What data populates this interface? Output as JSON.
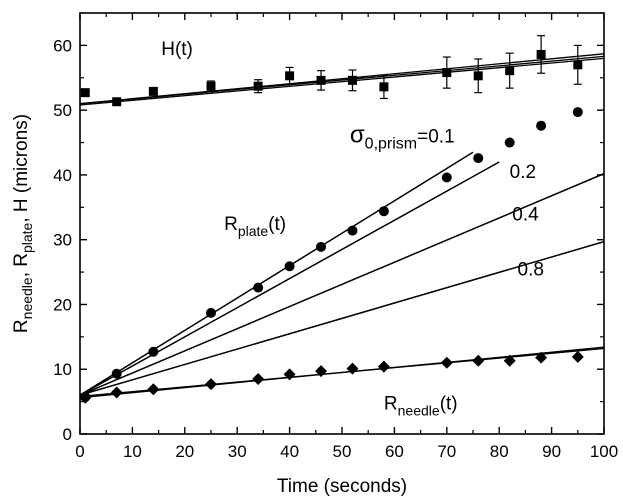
{
  "chart_data": {
    "type": "scatter",
    "xlabel": "Time (seconds)",
    "ylabel": {
      "parts": [
        {
          "text": "R",
          "sub": "needle"
        },
        {
          "text": ", R",
          "sub": "plate"
        },
        {
          "text": ", H  (microns)",
          "sub": ""
        }
      ]
    },
    "xlim": [
      0,
      100
    ],
    "ylim": [
      0,
      65
    ],
    "x_ticks": [
      0,
      10,
      20,
      30,
      40,
      50,
      60,
      70,
      80,
      90,
      100
    ],
    "y_ticks": [
      0,
      10,
      20,
      30,
      40,
      50,
      60
    ],
    "x_tick_labels": [
      "0",
      "10",
      "20",
      "30",
      "40",
      "50",
      "60",
      "70",
      "80",
      "90",
      "100"
    ],
    "y_tick_labels": [
      "0",
      "10",
      "20",
      "30",
      "40",
      "50",
      "60"
    ],
    "grid": false,
    "series": [
      {
        "marker": "square",
        "x": [
          1,
          7,
          14,
          25,
          34,
          40,
          46,
          52,
          58,
          70,
          76,
          82,
          88,
          95
        ],
        "y": [
          52.7,
          51.3,
          52.9,
          53.7,
          53.7,
          55.3,
          54.6,
          54.6,
          53.6,
          55.8,
          55.3,
          56.1,
          58.6,
          57.0
        ],
        "yerr": [
          0,
          0,
          0,
          0.8,
          1.0,
          1.3,
          1.5,
          1.6,
          1.8,
          2.4,
          2.6,
          2.7,
          2.9,
          3.0
        ]
      },
      {
        "marker": "circle",
        "x": [
          1,
          7,
          14,
          25,
          34,
          40,
          46,
          52,
          58,
          70,
          76,
          82,
          88,
          95
        ],
        "y": [
          5.7,
          9.3,
          12.7,
          18.7,
          22.6,
          25.9,
          28.9,
          31.4,
          34.4,
          39.6,
          42.6,
          45.0,
          47.6,
          49.7
        ]
      },
      {
        "marker": "diamond",
        "x": [
          1,
          7,
          14,
          25,
          34,
          40,
          46,
          52,
          58,
          70,
          76,
          82,
          88,
          95
        ],
        "y": [
          5.6,
          6.4,
          6.9,
          7.7,
          8.5,
          9.2,
          9.7,
          10.1,
          10.4,
          11.0,
          11.3,
          11.3,
          11.8,
          11.9
        ]
      }
    ],
    "fit_lines": [
      {
        "group": "H",
        "x": [
          0,
          100
        ],
        "y": [
          51.0,
          58.7
        ]
      },
      {
        "group": "H",
        "x": [
          0,
          100
        ],
        "y": [
          51.0,
          58.3
        ]
      },
      {
        "group": "H",
        "x": [
          0,
          100
        ],
        "y": [
          50.8,
          58.0
        ]
      },
      {
        "group": "plate",
        "x": [
          0,
          75
        ],
        "y": [
          6,
          43.5
        ]
      },
      {
        "group": "plate",
        "x": [
          0,
          80
        ],
        "y": [
          6,
          42
        ]
      },
      {
        "group": "plate",
        "x": [
          0,
          100
        ],
        "y": [
          6,
          40.2
        ]
      },
      {
        "group": "plate",
        "x": [
          0,
          100
        ],
        "y": [
          6,
          29.7
        ]
      },
      {
        "group": "needle",
        "x": [
          0,
          100
        ],
        "y": [
          5.6,
          13.4
        ]
      },
      {
        "group": "needle",
        "x": [
          0,
          100
        ],
        "y": [
          5.8,
          13.2
        ]
      }
    ],
    "annotations": [
      {
        "key": "H",
        "text": "H(t)",
        "sub": "",
        "tail": "",
        "x": 15.5,
        "y": 58.5
      },
      {
        "key": "sigma",
        "text": "σ",
        "sub": "0,prism",
        "tail": "=0.1",
        "x": 51.5,
        "y": 45
      },
      {
        "key": "v02",
        "text": "0.2",
        "sub": "",
        "tail": "",
        "x": 82,
        "y": 39.5
      },
      {
        "key": "v04",
        "text": "0.4",
        "sub": "",
        "tail": "",
        "x": 82.5,
        "y": 33
      },
      {
        "key": "v08",
        "text": "0.8",
        "sub": "",
        "tail": "",
        "x": 83.5,
        "y": 24.5
      },
      {
        "key": "Rplate",
        "text": "R",
        "sub": "plate",
        "tail": "(t)",
        "x": 27.5,
        "y": 31.5
      },
      {
        "key": "Rneedle",
        "text": "R",
        "sub": "needle",
        "tail": "(t)",
        "x": 58,
        "y": 3.8
      }
    ]
  }
}
